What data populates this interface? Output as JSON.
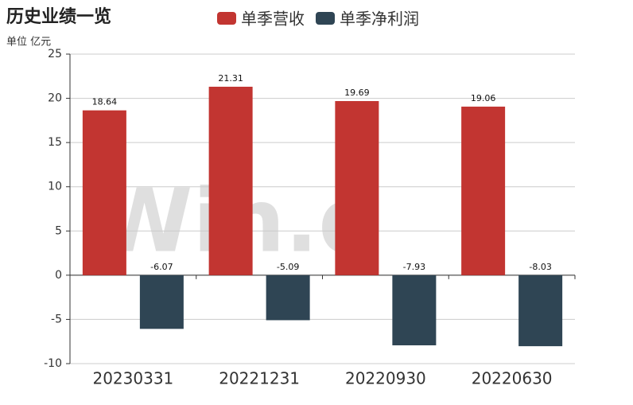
{
  "chart_data": {
    "type": "bar",
    "title": "历史业绩一览",
    "unit_label": "单位 亿元",
    "watermark": "Win.d",
    "categories": [
      "20230331",
      "20221231",
      "20220930",
      "20220630"
    ],
    "series": [
      {
        "name": "单季营收",
        "color": "#c23531",
        "values": [
          18.64,
          21.31,
          19.69,
          19.06
        ]
      },
      {
        "name": "单季净利润",
        "color": "#2f4554",
        "values": [
          -6.07,
          -5.09,
          -7.93,
          -8.03
        ]
      }
    ],
    "ylim": [
      -10,
      25
    ],
    "yticks": [
      -10,
      -5,
      0,
      5,
      10,
      15,
      20,
      25
    ],
    "grid": true,
    "legend": "top"
  }
}
